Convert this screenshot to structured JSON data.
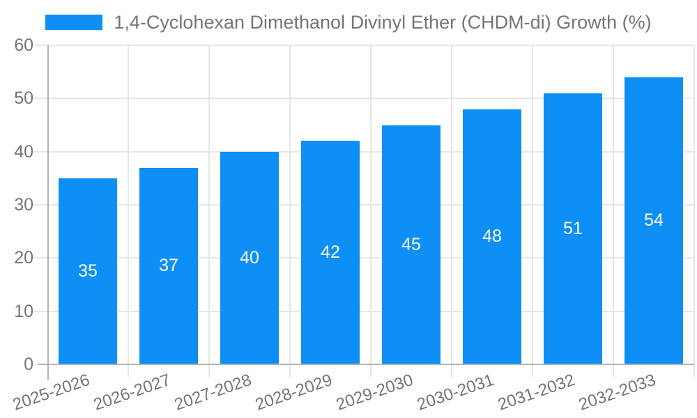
{
  "chart_data": {
    "type": "bar",
    "title": "1,4-Cyclohexan Dimethanol Divinyl Ether (CHDM-di) Growth (%)",
    "categories": [
      "2025-2026",
      "2026-2027",
      "2027-2028",
      "2028-2029",
      "2029-2030",
      "2030-2031",
      "2031-2032",
      "2032-2033"
    ],
    "values": [
      35,
      37,
      40,
      42,
      45,
      48,
      51,
      54
    ],
    "xlabel": "",
    "ylabel": "",
    "ylim": [
      0,
      60
    ],
    "yticks": [
      0,
      10,
      20,
      30,
      40,
      50,
      60
    ],
    "grid": true,
    "legend_position": "top-center",
    "x_label_rotation_deg": -19,
    "colors": {
      "bar": "#0D8FF5",
      "value_label": "#FFFFFF",
      "axis_text": "#757575",
      "gridline": "#E6E6E6",
      "axis_line": "#B3B3B3",
      "background": "#FFFFFF"
    }
  }
}
